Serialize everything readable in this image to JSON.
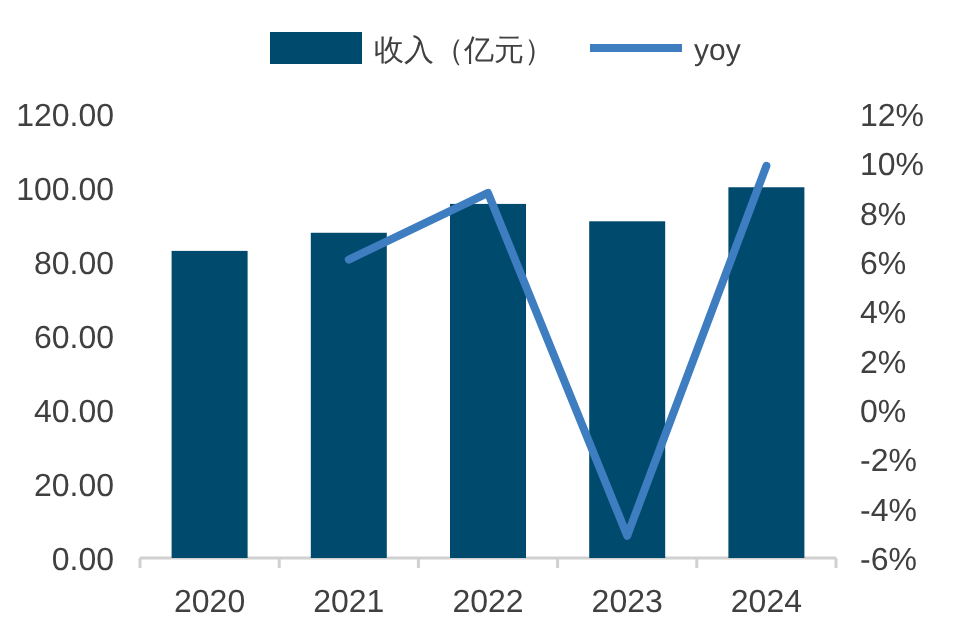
{
  "chart_data": {
    "type": "bar",
    "categories": [
      "2020",
      "2021",
      "2022",
      "2023",
      "2024"
    ],
    "series": [
      {
        "name": "收入（亿元）",
        "color": "#004a6e",
        "values": [
          83.0,
          87.9,
          95.7,
          91.0,
          100.2
        ]
      },
      {
        "name": "yoy",
        "type": "line",
        "axis": "y2",
        "color": "#3d7dc0",
        "values": [
          null,
          6.1,
          8.8,
          -5.1,
          9.9
        ]
      }
    ],
    "ylim": [
      0,
      120
    ],
    "yticks": [
      {
        "value": 0,
        "label": "0.00"
      },
      {
        "value": 20,
        "label": "20.00"
      },
      {
        "value": 40,
        "label": "40.00"
      },
      {
        "value": 60,
        "label": "60.00"
      },
      {
        "value": 80,
        "label": "80.00"
      },
      {
        "value": 100,
        "label": "100.00"
      },
      {
        "value": 120,
        "label": "120.00"
      }
    ],
    "y2lim": [
      -6,
      12
    ],
    "y2ticks": [
      {
        "value": -6,
        "label": "-6%"
      },
      {
        "value": -4,
        "label": "-4%"
      },
      {
        "value": -2,
        "label": "-2%"
      },
      {
        "value": 0,
        "label": "0%"
      },
      {
        "value": 2,
        "label": "2%"
      },
      {
        "value": 4,
        "label": "4%"
      },
      {
        "value": 6,
        "label": "6%"
      },
      {
        "value": 8,
        "label": "8%"
      },
      {
        "value": 10,
        "label": "10%"
      },
      {
        "value": 12,
        "label": "12%"
      }
    ],
    "legend": "top",
    "marker": "none",
    "line_style": "solid"
  }
}
